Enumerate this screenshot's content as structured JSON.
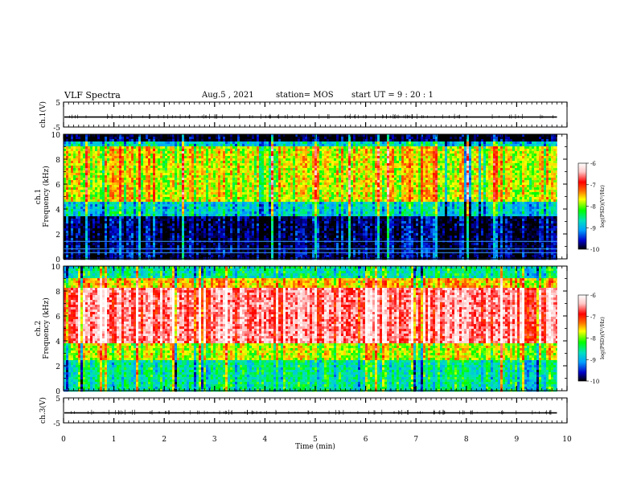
{
  "header": {
    "title": "VLF Spectra",
    "date": "Aug.5 , 2021",
    "station": "station= MOS",
    "start": "start UT = 9 : 20 : 1"
  },
  "chart_data": [
    {
      "type": "line",
      "panel": "waveform-top",
      "ylabel": "ch.1(V)",
      "ylim": [
        -5,
        5
      ],
      "yticks": [
        "5",
        "-5"
      ],
      "xlim": [
        0,
        10
      ],
      "baseline": -1.0
    },
    {
      "type": "heatmap",
      "panel": "spectrogram-ch1",
      "ylabel": "ch.1 Frequency (kHz)",
      "ylim": [
        0,
        10
      ],
      "yticks": [
        "0",
        "2",
        "4",
        "6",
        "8",
        "10"
      ],
      "xlim": [
        0,
        10
      ],
      "data_end_min": 9.8,
      "colorbar": {
        "label": "log(PSD)(V²/Hz)",
        "range": [
          -10,
          -6
        ],
        "ticks": [
          "-6",
          "-7",
          "-8",
          "-9",
          "-10"
        ]
      },
      "bands": [
        {
          "from_khz": 0,
          "to_khz": 3.5,
          "log_psd": -9.8
        },
        {
          "from_khz": 3.5,
          "to_khz": 4.5,
          "log_psd": -8.8
        },
        {
          "from_khz": 4.5,
          "to_khz": 9.0,
          "log_psd": -7.8
        },
        {
          "from_khz": 9.0,
          "to_khz": 9.4,
          "log_psd": -8.8
        },
        {
          "from_khz": 9.4,
          "to_khz": 10,
          "log_psd": -10
        }
      ]
    },
    {
      "type": "heatmap",
      "panel": "spectrogram-ch2",
      "ylabel": "ch.2 Frequency (kHz)",
      "ylim": [
        0,
        10
      ],
      "yticks": [
        "0",
        "2",
        "4",
        "6",
        "8",
        "10"
      ],
      "xlim": [
        0,
        10
      ],
      "data_end_min": 9.8,
      "colorbar": {
        "label": "log(PSD)(V²/Hz)",
        "range": [
          -10,
          -6
        ],
        "ticks": [
          "-6",
          "-7",
          "-8",
          "-9",
          "-10"
        ]
      },
      "bands": [
        {
          "from_khz": 0,
          "to_khz": 2.5,
          "log_psd": -8.6
        },
        {
          "from_khz": 2.5,
          "to_khz": 3.8,
          "log_psd": -7.9
        },
        {
          "from_khz": 3.8,
          "to_khz": 8.2,
          "log_psd": -6.6
        },
        {
          "from_khz": 8.2,
          "to_khz": 9.0,
          "log_psd": -7.6
        },
        {
          "from_khz": 9.0,
          "to_khz": 10,
          "log_psd": -8.6
        }
      ]
    },
    {
      "type": "line",
      "panel": "waveform-bottom",
      "ylabel": "ch.3(V)",
      "ylim": [
        -5,
        5
      ],
      "yticks": [
        "5",
        "-5"
      ],
      "xlim": [
        0,
        10
      ],
      "baseline": -1.0
    }
  ],
  "xaxis": {
    "label": "Time (min)",
    "ticks": [
      "0",
      "1",
      "2",
      "3",
      "4",
      "5",
      "6",
      "7",
      "8",
      "9",
      "10"
    ]
  },
  "colors": {
    "colormap": [
      "#000000",
      "#0000c8",
      "#00a0ff",
      "#00e0c0",
      "#00ff00",
      "#ffff00",
      "#ff6a00",
      "#ff0000",
      "#ffc8c8",
      "#ffffff"
    ]
  }
}
